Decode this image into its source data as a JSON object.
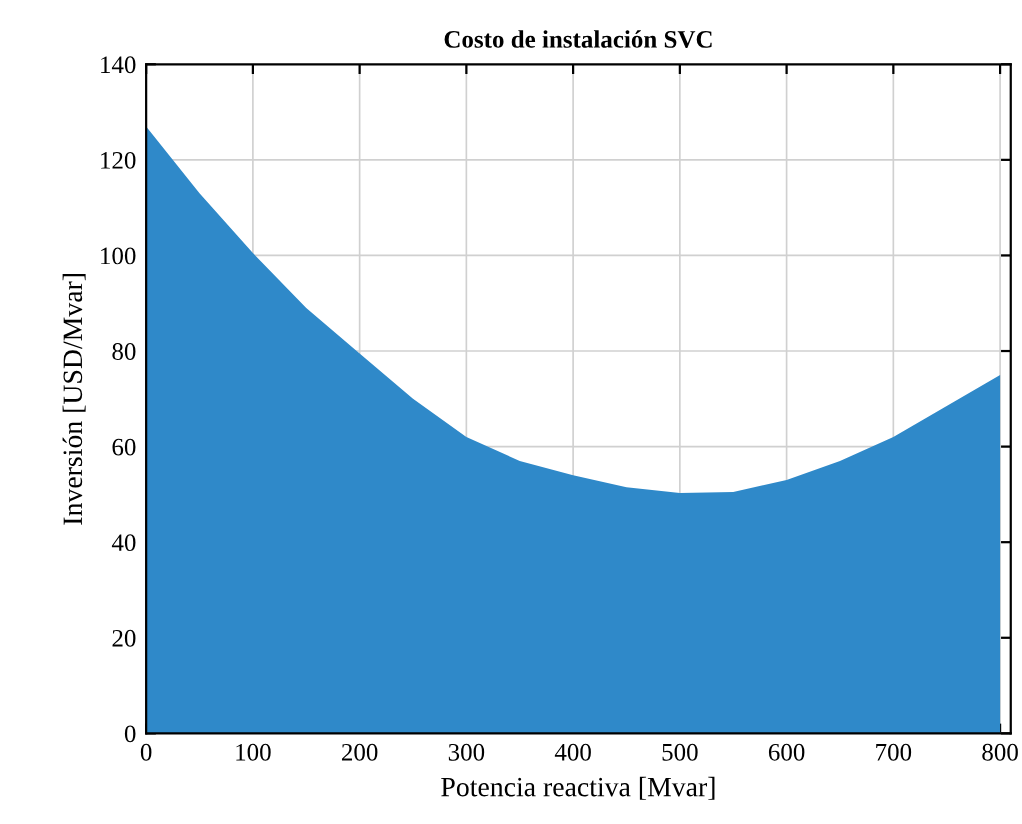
{
  "chart_data": {
    "type": "area",
    "title": "Costo de instalación SVC",
    "xlabel": "Potencia reactiva [Mvar]",
    "ylabel": "Inversión [USD/Mvar]",
    "x": [
      0,
      50,
      100,
      150,
      200,
      250,
      300,
      350,
      400,
      450,
      500,
      550,
      600,
      650,
      700,
      750,
      800
    ],
    "series": [
      {
        "color": "#2f89c9",
        "values": [
          127,
          113,
          100.5,
          89,
          79.5,
          70,
          62,
          57,
          54,
          51.5,
          50.3,
          50.5,
          53,
          57,
          62,
          68.5,
          75
        ]
      }
    ],
    "xlim": [
      0,
      810
    ],
    "xticks": [
      0,
      100,
      200,
      300,
      400,
      500,
      600,
      700,
      800
    ],
    "ylim": [
      0,
      140
    ],
    "yticks": [
      0,
      20,
      40,
      60,
      80,
      100,
      120,
      140
    ],
    "grid": true
  }
}
